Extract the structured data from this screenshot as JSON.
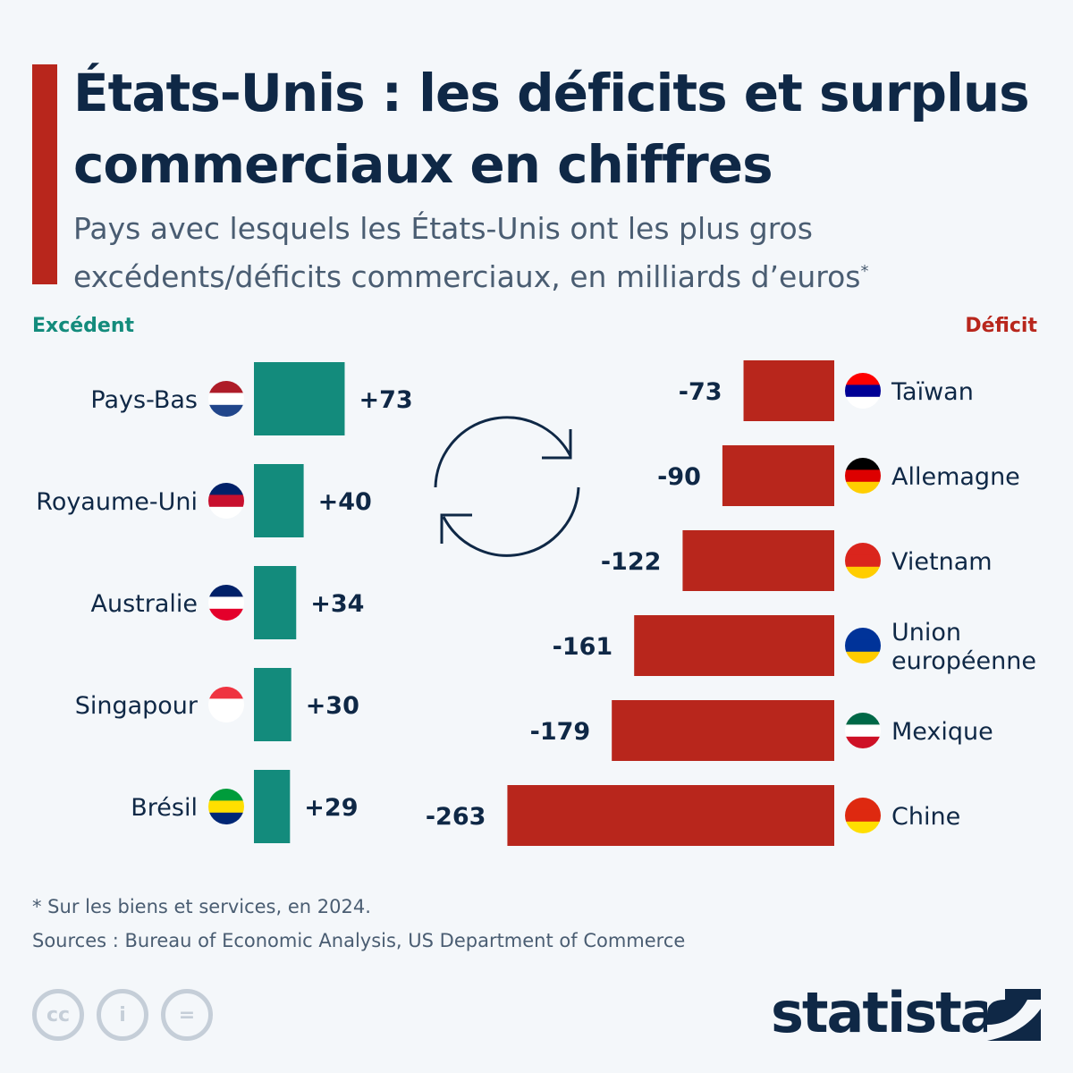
{
  "title": "États-Unis : les déficits et surplus commerciaux en chiffres",
  "subtitle": "Pays avec lesquels les États-Unis ont les plus gros excédents/déficits commerciaux, en milliards d’euros",
  "subtitle_mark": "*",
  "footnote": "* Sur les biens et services, en 2024.",
  "sources": "Sources : Bureau of Economic Analysis, US Department of Commerce",
  "brand": "statista",
  "colors": {
    "surplus": "#138b7c",
    "deficit": "#b8261c",
    "text": "#0f2846"
  },
  "chart_data": {
    "type": "bar",
    "title": "États-Unis : les déficits et surplus commerciaux en chiffres",
    "unit": "milliards d’euros",
    "series": [
      {
        "name": "Excédent",
        "categories": [
          "Pays-Bas",
          "Royaume-Uni",
          "Australie",
          "Singapour",
          "Brésil"
        ],
        "values": [
          73,
          40,
          34,
          30,
          29
        ],
        "labels": [
          "+73",
          "+40",
          "+34",
          "+30",
          "+29"
        ]
      },
      {
        "name": "Déficit",
        "categories": [
          "Taïwan",
          "Allemagne",
          "Vietnam",
          "Union européenne",
          "Mexique",
          "Chine"
        ],
        "values": [
          -73,
          -90,
          -122,
          -161,
          -179,
          -263
        ],
        "labels": [
          "-73",
          "-90",
          "-122",
          "-161",
          "-179",
          "-263"
        ]
      }
    ]
  }
}
